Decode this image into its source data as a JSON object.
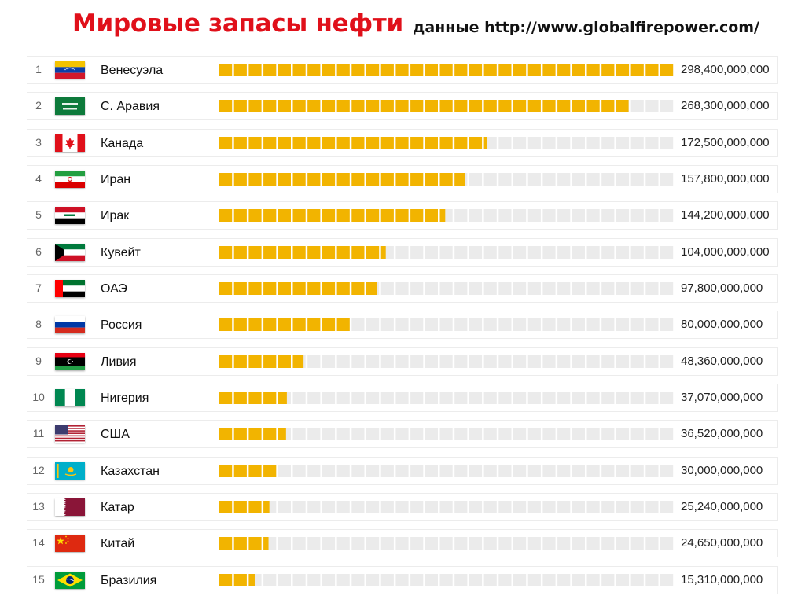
{
  "header": {
    "title": "Мировые запасы нефти",
    "subtitle": "данные http://www.globalfirepower.com/"
  },
  "colors": {
    "title": "#e0101a",
    "bar_filled": "#f2b400",
    "bar_empty": "#ebebeb"
  },
  "chart_data": {
    "type": "bar",
    "title": "Мировые запасы нефти",
    "subtitle": "данные http://www.globalfirepower.com/",
    "ranks": [
      "1",
      "2",
      "3",
      "4",
      "5",
      "6",
      "7",
      "8",
      "9",
      "10",
      "11",
      "12",
      "13",
      "14",
      "15"
    ],
    "categories": [
      "Венесуэла",
      "С. Аравия",
      "Канада",
      "Иран",
      "Ирак",
      "Кувейт",
      "ОАЭ",
      "Россия",
      "Ливия",
      "Нигерия",
      "США",
      "Казахстан",
      "Катар",
      "Китай",
      "Бразилия"
    ],
    "values": [
      298400000000,
      268300000000,
      172500000000,
      157800000000,
      144200000000,
      104000000000,
      97800000000,
      80000000000,
      48360000000,
      37070000000,
      36520000000,
      30000000000,
      25240000000,
      24650000000,
      15310000000
    ],
    "value_labels": [
      "298,400,000,000",
      "268,300,000,000",
      "172,500,000,000",
      "157,800,000,000",
      "144,200,000,000",
      "104,000,000,000",
      "97,800,000,000",
      "80,000,000,000",
      "48,360,000,000",
      "37,070,000,000",
      "36,520,000,000",
      "30,000,000,000",
      "25,240,000,000",
      "24,650,000,000",
      "15,310,000,000"
    ],
    "flag_icons": [
      "venezuela-flag-icon",
      "saudi-arabia-flag-icon",
      "canada-flag-icon",
      "iran-flag-icon",
      "iraq-flag-icon",
      "kuwait-flag-icon",
      "uae-flag-icon",
      "russia-flag-icon",
      "libya-flag-icon",
      "nigeria-flag-icon",
      "usa-flag-icon",
      "kazakhstan-flag-icon",
      "qatar-flag-icon",
      "china-flag-icon",
      "brazil-flag-icon"
    ],
    "xlim": [
      0,
      298400000000
    ],
    "grid": false,
    "legend": "none"
  }
}
